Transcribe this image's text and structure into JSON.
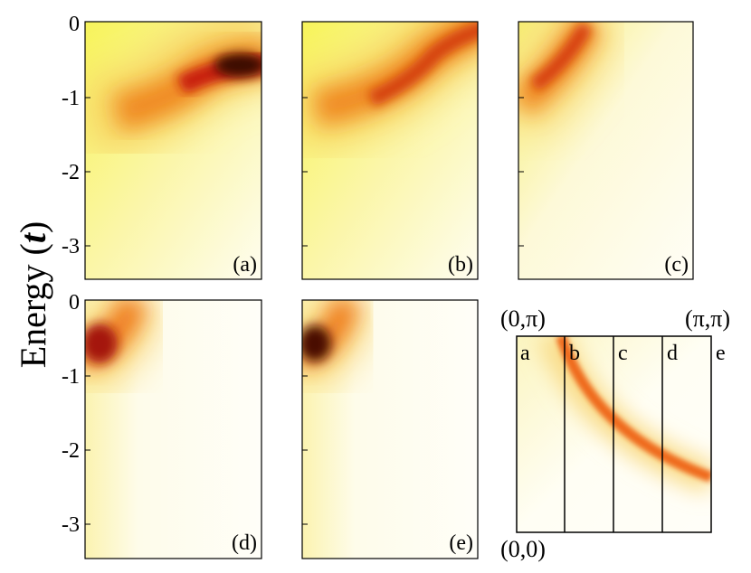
{
  "chart_data": [
    {
      "type": "heatmap",
      "panel": "(a)",
      "ylabel": "Energy (t)",
      "ylim": [
        -3.5,
        0
      ],
      "yticks": [
        "0",
        "-1",
        "-2",
        "-3"
      ],
      "ridge": {
        "energy": [
          -1.3,
          -1.2,
          -1.05,
          -0.85,
          -0.65,
          -0.6
        ],
        "intensity_peak": "right"
      }
    },
    {
      "type": "heatmap",
      "panel": "(b)",
      "ylim": [
        -3.5,
        0
      ],
      "ridge": {
        "energy": [
          -1.3,
          -1.1,
          -0.85,
          -0.55,
          -0.25,
          -0.05
        ],
        "intensity_peak": "right"
      }
    },
    {
      "type": "heatmap",
      "panel": "(c)",
      "ylim": [
        -3.5,
        0
      ],
      "ridge": {
        "energy": [
          -1.1,
          -0.6,
          -0.15,
          0.0
        ],
        "intensity_peak": "middle"
      }
    },
    {
      "type": "heatmap",
      "panel": "(d)",
      "ylim": [
        -3.5,
        0
      ],
      "ylabel": "Energy (t)",
      "yticks": [
        "0",
        "-1",
        "-2",
        "-3"
      ],
      "ridge": {
        "energy": [
          -0.7,
          -0.3,
          0.0
        ],
        "intensity_peak": "left"
      }
    },
    {
      "type": "heatmap",
      "panel": "(e)",
      "ylim": [
        -3.5,
        0
      ],
      "ridge": {
        "energy": [
          -0.65,
          -0.3,
          0.0
        ],
        "intensity_peak": "left"
      }
    },
    {
      "type": "heatmap",
      "panel": "momentum-map",
      "corners": {
        "top_left": "(0,π)",
        "top_right": "(π,π)",
        "bottom_left": "(0,0)"
      },
      "cuts": [
        "a",
        "b",
        "c",
        "d",
        "e"
      ]
    }
  ],
  "figure": {
    "ylabel_main": "Energy (",
    "ylabel_italic": "t",
    "ylabel_close": ")"
  }
}
